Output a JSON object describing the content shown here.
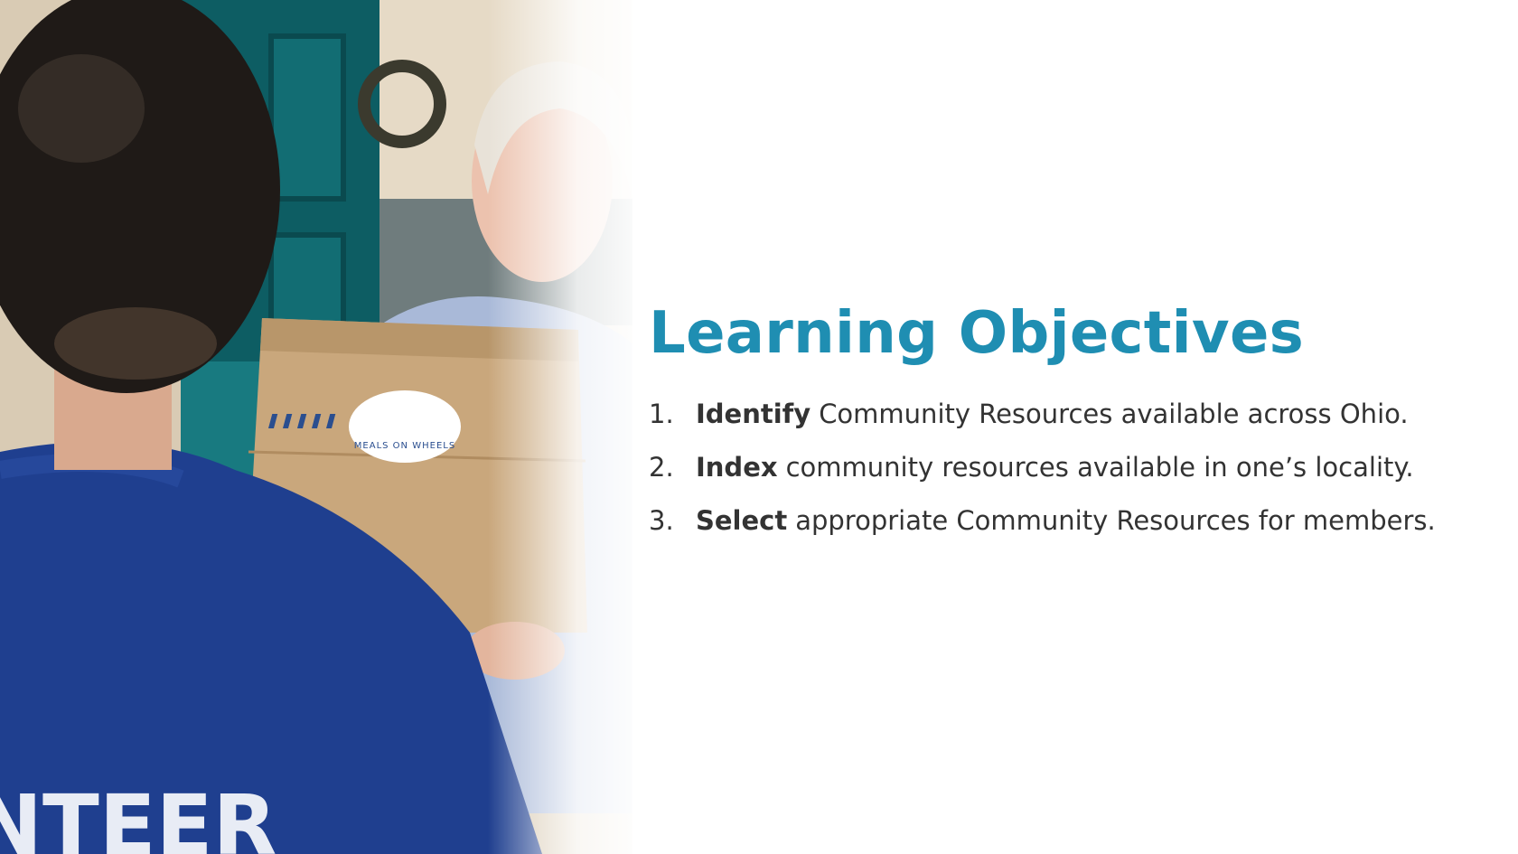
{
  "slide": {
    "title": "Learning Objectives",
    "objectives": [
      {
        "number": "1.",
        "verb": "Identify",
        "rest": "Community Resources available across Ohio."
      },
      {
        "number": "2.",
        "verb": "Index",
        "rest": "community resources available in one’s locality."
      },
      {
        "number": "3.",
        "verb": "Select",
        "rest": "appropriate Community Resources for members."
      }
    ]
  },
  "photo": {
    "bag_sticker_text": "MEALS ON WHEELS",
    "shirt_text": "NTEER"
  },
  "colors": {
    "title": "#1f8eb2",
    "body_text": "#333333",
    "background": "#ffffff"
  }
}
